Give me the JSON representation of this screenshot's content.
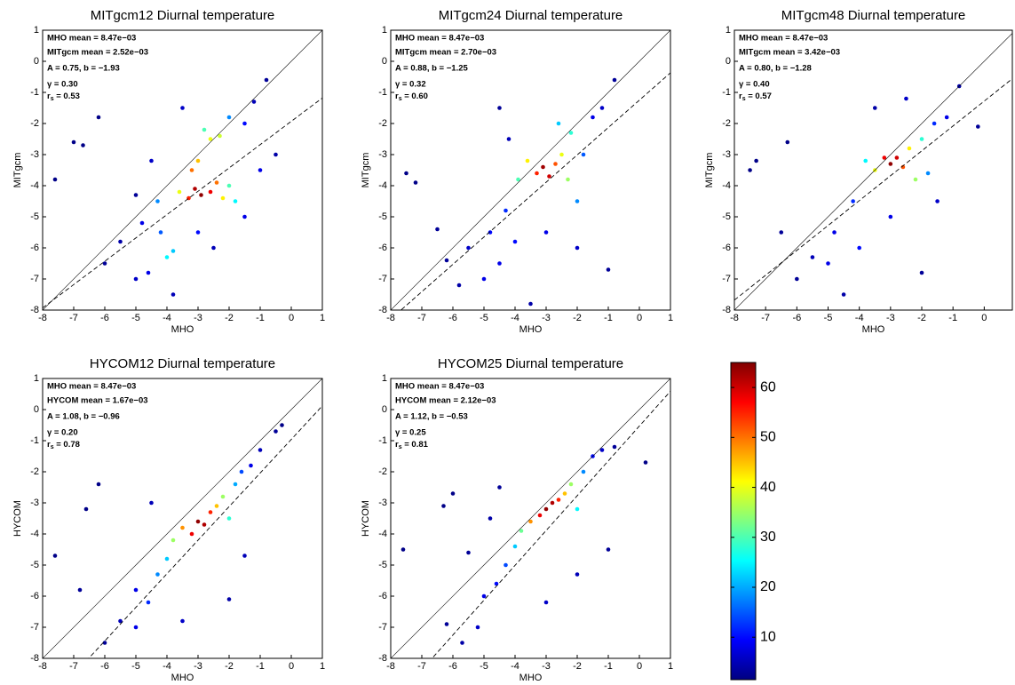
{
  "chart_data": [
    {
      "type": "scatter",
      "title": "MITgcm12 Diurnal temperature",
      "xlabel": "MHO",
      "ylabel": "MITgcm",
      "xlim": [
        -8,
        1
      ],
      "ylim": [
        -8,
        1
      ],
      "xticks": [
        -8,
        -7,
        -6,
        -5,
        -4,
        -3,
        -2,
        -1,
        0,
        1
      ],
      "yticks": [
        -8,
        -7,
        -6,
        -5,
        -4,
        -3,
        -2,
        -1,
        0,
        1
      ],
      "stats": [
        "MHO mean = 8.47e−03",
        "MITgcm mean = 2.52e−03",
        "A = 0.75, b = −1.93",
        "γ = 0.30"
      ],
      "rs": {
        "symbol": "r",
        "sub": "s",
        "text": " = 0.53"
      },
      "fit": {
        "A": 0.75,
        "b": -1.93
      },
      "points": [
        [
          -7.6,
          -3.8,
          2
        ],
        [
          -7,
          -2.6,
          2
        ],
        [
          -6.7,
          -2.7,
          2
        ],
        [
          -6.2,
          -1.8,
          2
        ],
        [
          -5,
          -4.3,
          3
        ],
        [
          -5.5,
          -5.8,
          4
        ],
        [
          -6,
          -6.5,
          3
        ],
        [
          -5,
          -7,
          6
        ],
        [
          -4.6,
          -6.8,
          8
        ],
        [
          -4.8,
          -5.2,
          8
        ],
        [
          -4.3,
          -4.5,
          18
        ],
        [
          -4,
          -6.3,
          25
        ],
        [
          -3.8,
          -6.1,
          22
        ],
        [
          -4.2,
          -5.5,
          15
        ],
        [
          -3.6,
          -4.2,
          40
        ],
        [
          -3.3,
          -4.4,
          55
        ],
        [
          -3.1,
          -4.1,
          62
        ],
        [
          -2.9,
          -4.3,
          64
        ],
        [
          -3.2,
          -3.5,
          50
        ],
        [
          -3,
          -3.2,
          45
        ],
        [
          -2.6,
          -4.2,
          58
        ],
        [
          -2.4,
          -3.9,
          50
        ],
        [
          -2.2,
          -4.4,
          42
        ],
        [
          -2,
          -4,
          30
        ],
        [
          -1.8,
          -4.5,
          25
        ],
        [
          -2.6,
          -2.5,
          40
        ],
        [
          -2.3,
          -2.4,
          38
        ],
        [
          -2.8,
          -2.2,
          30
        ],
        [
          -2,
          -1.8,
          18
        ],
        [
          -1.5,
          -2,
          10
        ],
        [
          -1.2,
          -1.3,
          5
        ],
        [
          -0.8,
          -0.6,
          3
        ],
        [
          -0.5,
          -3,
          4
        ],
        [
          -1,
          -3.5,
          8
        ],
        [
          -3.5,
          -1.5,
          6
        ],
        [
          -3,
          -5.5,
          10
        ],
        [
          -2.5,
          -6,
          5
        ],
        [
          -1.5,
          -5,
          8
        ],
        [
          -4.5,
          -3.2,
          6
        ],
        [
          -3.8,
          -7.5,
          5
        ]
      ]
    },
    {
      "type": "scatter",
      "title": "MITgcm24 Diurnal temperature",
      "xlabel": "MHO",
      "ylabel": "MITgcm",
      "xlim": [
        -8,
        1
      ],
      "ylim": [
        -8,
        1
      ],
      "xticks": [
        -8,
        -7,
        -6,
        -5,
        -4,
        -3,
        -2,
        -1,
        0,
        1
      ],
      "yticks": [
        -8,
        -7,
        -6,
        -5,
        -4,
        -3,
        -2,
        -1,
        0,
        1
      ],
      "stats": [
        "MHO mean = 8.47e−03",
        "MITgcm mean = 2.70e−03",
        "A = 0.88, b = −1.25",
        "γ = 0.32"
      ],
      "rs": {
        "symbol": "r",
        "sub": "s",
        "text": " = 0.60"
      },
      "fit": {
        "A": 0.88,
        "b": -1.25
      },
      "points": [
        [
          -7.5,
          -3.6,
          2
        ],
        [
          -7.2,
          -3.9,
          2
        ],
        [
          -6.5,
          -5.4,
          3
        ],
        [
          -6.2,
          -6.4,
          3
        ],
        [
          -5.8,
          -7.2,
          4
        ],
        [
          -5.5,
          -6,
          6
        ],
        [
          -5,
          -7,
          8
        ],
        [
          -4.8,
          -5.5,
          10
        ],
        [
          -4.5,
          -6.5,
          8
        ],
        [
          -4.3,
          -4.8,
          12
        ],
        [
          -4,
          -5.8,
          10
        ],
        [
          -4.2,
          -2.5,
          5
        ],
        [
          -3.9,
          -3.8,
          30
        ],
        [
          -3.6,
          -3.2,
          42
        ],
        [
          -3.3,
          -3.6,
          55
        ],
        [
          -3.1,
          -3.4,
          63
        ],
        [
          -2.9,
          -3.7,
          60
        ],
        [
          -2.7,
          -3.3,
          52
        ],
        [
          -2.5,
          -3,
          40
        ],
        [
          -2.3,
          -3.8,
          35
        ],
        [
          -2.2,
          -2.3,
          28
        ],
        [
          -2.6,
          -2,
          22
        ],
        [
          -2,
          -4.5,
          18
        ],
        [
          -1.8,
          -3,
          15
        ],
        [
          -1.5,
          -1.8,
          8
        ],
        [
          -1.2,
          -1.5,
          6
        ],
        [
          -0.8,
          -0.6,
          3
        ],
        [
          -1,
          -6.7,
          3
        ],
        [
          -3,
          -5.5,
          8
        ],
        [
          -3.5,
          -7.8,
          4
        ],
        [
          -2,
          -6,
          6
        ],
        [
          -4.5,
          -1.5,
          3
        ]
      ]
    },
    {
      "type": "scatter",
      "title": "MITgcm48 Diurnal temperature",
      "xlabel": "MHO",
      "ylabel": "MITgcm",
      "xlim": [
        -8,
        0.9
      ],
      "ylim": [
        -8,
        1
      ],
      "xticks": [
        -8,
        -7,
        -6,
        -5,
        -4,
        -3,
        -2,
        -1,
        0
      ],
      "yticks": [
        -8,
        -7,
        -6,
        -5,
        -4,
        -3,
        -2,
        -1,
        0,
        1
      ],
      "stats": [
        "MHO mean = 8.47e−03",
        "MITgcm mean = 3.42e−03",
        "A = 0.80, b = −1.28",
        "γ = 0.40"
      ],
      "rs": {
        "symbol": "r",
        "sub": "s",
        "text": " = 0.57"
      },
      "fit": {
        "A": 0.8,
        "b": -1.28
      },
      "points": [
        [
          -7.5,
          -3.5,
          2
        ],
        [
          -7.3,
          -3.2,
          2
        ],
        [
          -6.3,
          -2.6,
          2
        ],
        [
          -6.5,
          -5.5,
          3
        ],
        [
          -6,
          -7,
          3
        ],
        [
          -5.5,
          -6.3,
          5
        ],
        [
          -5,
          -6.5,
          8
        ],
        [
          -4.8,
          -5.5,
          8
        ],
        [
          -4.5,
          -7.5,
          4
        ],
        [
          -4.2,
          -4.5,
          12
        ],
        [
          -4,
          -6,
          10
        ],
        [
          -3.8,
          -3.2,
          25
        ],
        [
          -3.5,
          -3.5,
          40
        ],
        [
          -3.2,
          -3.1,
          58
        ],
        [
          -3,
          -3.3,
          64
        ],
        [
          -2.8,
          -3.1,
          60
        ],
        [
          -2.6,
          -3.4,
          52
        ],
        [
          -2.4,
          -2.8,
          42
        ],
        [
          -2.2,
          -3.8,
          35
        ],
        [
          -2,
          -2.5,
          28
        ],
        [
          -1.8,
          -3.6,
          18
        ],
        [
          -1.6,
          -2,
          12
        ],
        [
          -1.2,
          -1.8,
          8
        ],
        [
          -0.8,
          -0.8,
          4
        ],
        [
          -0.2,
          -2.1,
          3
        ],
        [
          -2.5,
          -1.2,
          6
        ],
        [
          -3.5,
          -1.5,
          4
        ],
        [
          -2,
          -6.8,
          3
        ],
        [
          -3,
          -5,
          8
        ],
        [
          -1.5,
          -4.5,
          6
        ]
      ]
    },
    {
      "type": "scatter",
      "title": "HYCOM12 Diurnal temperature",
      "xlabel": "MHO",
      "ylabel": "HYCOM",
      "xlim": [
        -8,
        1
      ],
      "ylim": [
        -8,
        1
      ],
      "xticks": [
        -8,
        -7,
        -6,
        -5,
        -4,
        -3,
        -2,
        -1,
        0,
        1
      ],
      "yticks": [
        -8,
        -7,
        -6,
        -5,
        -4,
        -3,
        -2,
        -1,
        0,
        1
      ],
      "stats": [
        "MHO mean = 8.47e−03",
        "HYCOM mean = 1.67e−03",
        "A = 1.08, b = −0.96",
        "γ = 0.20"
      ],
      "rs": {
        "symbol": "r",
        "sub": "s",
        "text": " = 0.78"
      },
      "fit": {
        "A": 1.08,
        "b": -0.96
      },
      "points": [
        [
          -7.6,
          -4.7,
          2
        ],
        [
          -6.6,
          -3.2,
          2
        ],
        [
          -6.2,
          -2.4,
          2
        ],
        [
          -6.8,
          -5.8,
          3
        ],
        [
          -6,
          -7.5,
          3
        ],
        [
          -5.5,
          -6.8,
          5
        ],
        [
          -5,
          -7,
          8
        ],
        [
          -5,
          -5.8,
          8
        ],
        [
          -4.6,
          -6.2,
          12
        ],
        [
          -4.3,
          -5.3,
          18
        ],
        [
          -4,
          -4.8,
          22
        ],
        [
          -3.8,
          -4.2,
          35
        ],
        [
          -3.5,
          -3.8,
          48
        ],
        [
          -3.2,
          -4,
          58
        ],
        [
          -3,
          -3.6,
          64
        ],
        [
          -2.8,
          -3.7,
          62
        ],
        [
          -2.6,
          -3.3,
          55
        ],
        [
          -2.4,
          -3.1,
          45
        ],
        [
          -2.2,
          -2.8,
          35
        ],
        [
          -2,
          -3.5,
          28
        ],
        [
          -1.8,
          -2.4,
          20
        ],
        [
          -1.6,
          -2,
          14
        ],
        [
          -1.3,
          -1.8,
          8
        ],
        [
          -1,
          -1.3,
          5
        ],
        [
          -0.5,
          -0.7,
          3
        ],
        [
          -0.3,
          -0.5,
          2
        ],
        [
          -2,
          -6.1,
          4
        ],
        [
          -1.5,
          -4.7,
          5
        ],
        [
          -4.5,
          -3,
          5
        ],
        [
          -3.5,
          -6.8,
          6
        ]
      ]
    },
    {
      "type": "scatter",
      "title": "HYCOM25 Diurnal temperature",
      "xlabel": "MHO",
      "ylabel": "HYCOM",
      "xlim": [
        -8,
        1
      ],
      "ylim": [
        -8,
        1
      ],
      "xticks": [
        -8,
        -7,
        -6,
        -5,
        -4,
        -3,
        -2,
        -1,
        0,
        1
      ],
      "yticks": [
        -8,
        -7,
        -6,
        -5,
        -4,
        -3,
        -2,
        -1,
        0,
        1
      ],
      "stats": [
        "MHO mean = 8.47e−03",
        "HYCOM mean = 2.12e−03",
        "A = 1.12, b = −0.53",
        "γ = 0.25"
      ],
      "rs": {
        "symbol": "r",
        "sub": "s",
        "text": " = 0.81"
      },
      "fit": {
        "A": 1.12,
        "b": -0.53
      },
      "points": [
        [
          -7.6,
          -4.5,
          2
        ],
        [
          -6.3,
          -3.1,
          2
        ],
        [
          -6,
          -2.7,
          2
        ],
        [
          -5.5,
          -4.6,
          3
        ],
        [
          -6.2,
          -6.9,
          3
        ],
        [
          -5.7,
          -7.5,
          4
        ],
        [
          -5.2,
          -7,
          6
        ],
        [
          -5,
          -6,
          8
        ],
        [
          -4.6,
          -5.6,
          10
        ],
        [
          -4.3,
          -5,
          14
        ],
        [
          -4,
          -4.4,
          22
        ],
        [
          -3.8,
          -3.9,
          32
        ],
        [
          -3.5,
          -3.6,
          48
        ],
        [
          -3.2,
          -3.4,
          58
        ],
        [
          -3,
          -3.2,
          64
        ],
        [
          -2.8,
          -3,
          62
        ],
        [
          -2.6,
          -2.9,
          55
        ],
        [
          -2.4,
          -2.7,
          45
        ],
        [
          -2.2,
          -2.4,
          35
        ],
        [
          -2,
          -3.2,
          25
        ],
        [
          -1.8,
          -2,
          18
        ],
        [
          -1.5,
          -1.5,
          10
        ],
        [
          -1.2,
          -1.3,
          6
        ],
        [
          -0.8,
          -1.2,
          3
        ],
        [
          0.2,
          -1.7,
          2
        ],
        [
          -3,
          -6.2,
          6
        ],
        [
          -2,
          -5.3,
          5
        ],
        [
          -4.5,
          -2.5,
          3
        ],
        [
          -1,
          -4.5,
          3
        ],
        [
          -4.8,
          -3.5,
          4
        ]
      ]
    },
    {
      "type": "colorbar",
      "colormap": "jet",
      "clim": [
        1.5,
        65
      ],
      "ticks": [
        10,
        20,
        30,
        40,
        50,
        60
      ]
    }
  ]
}
